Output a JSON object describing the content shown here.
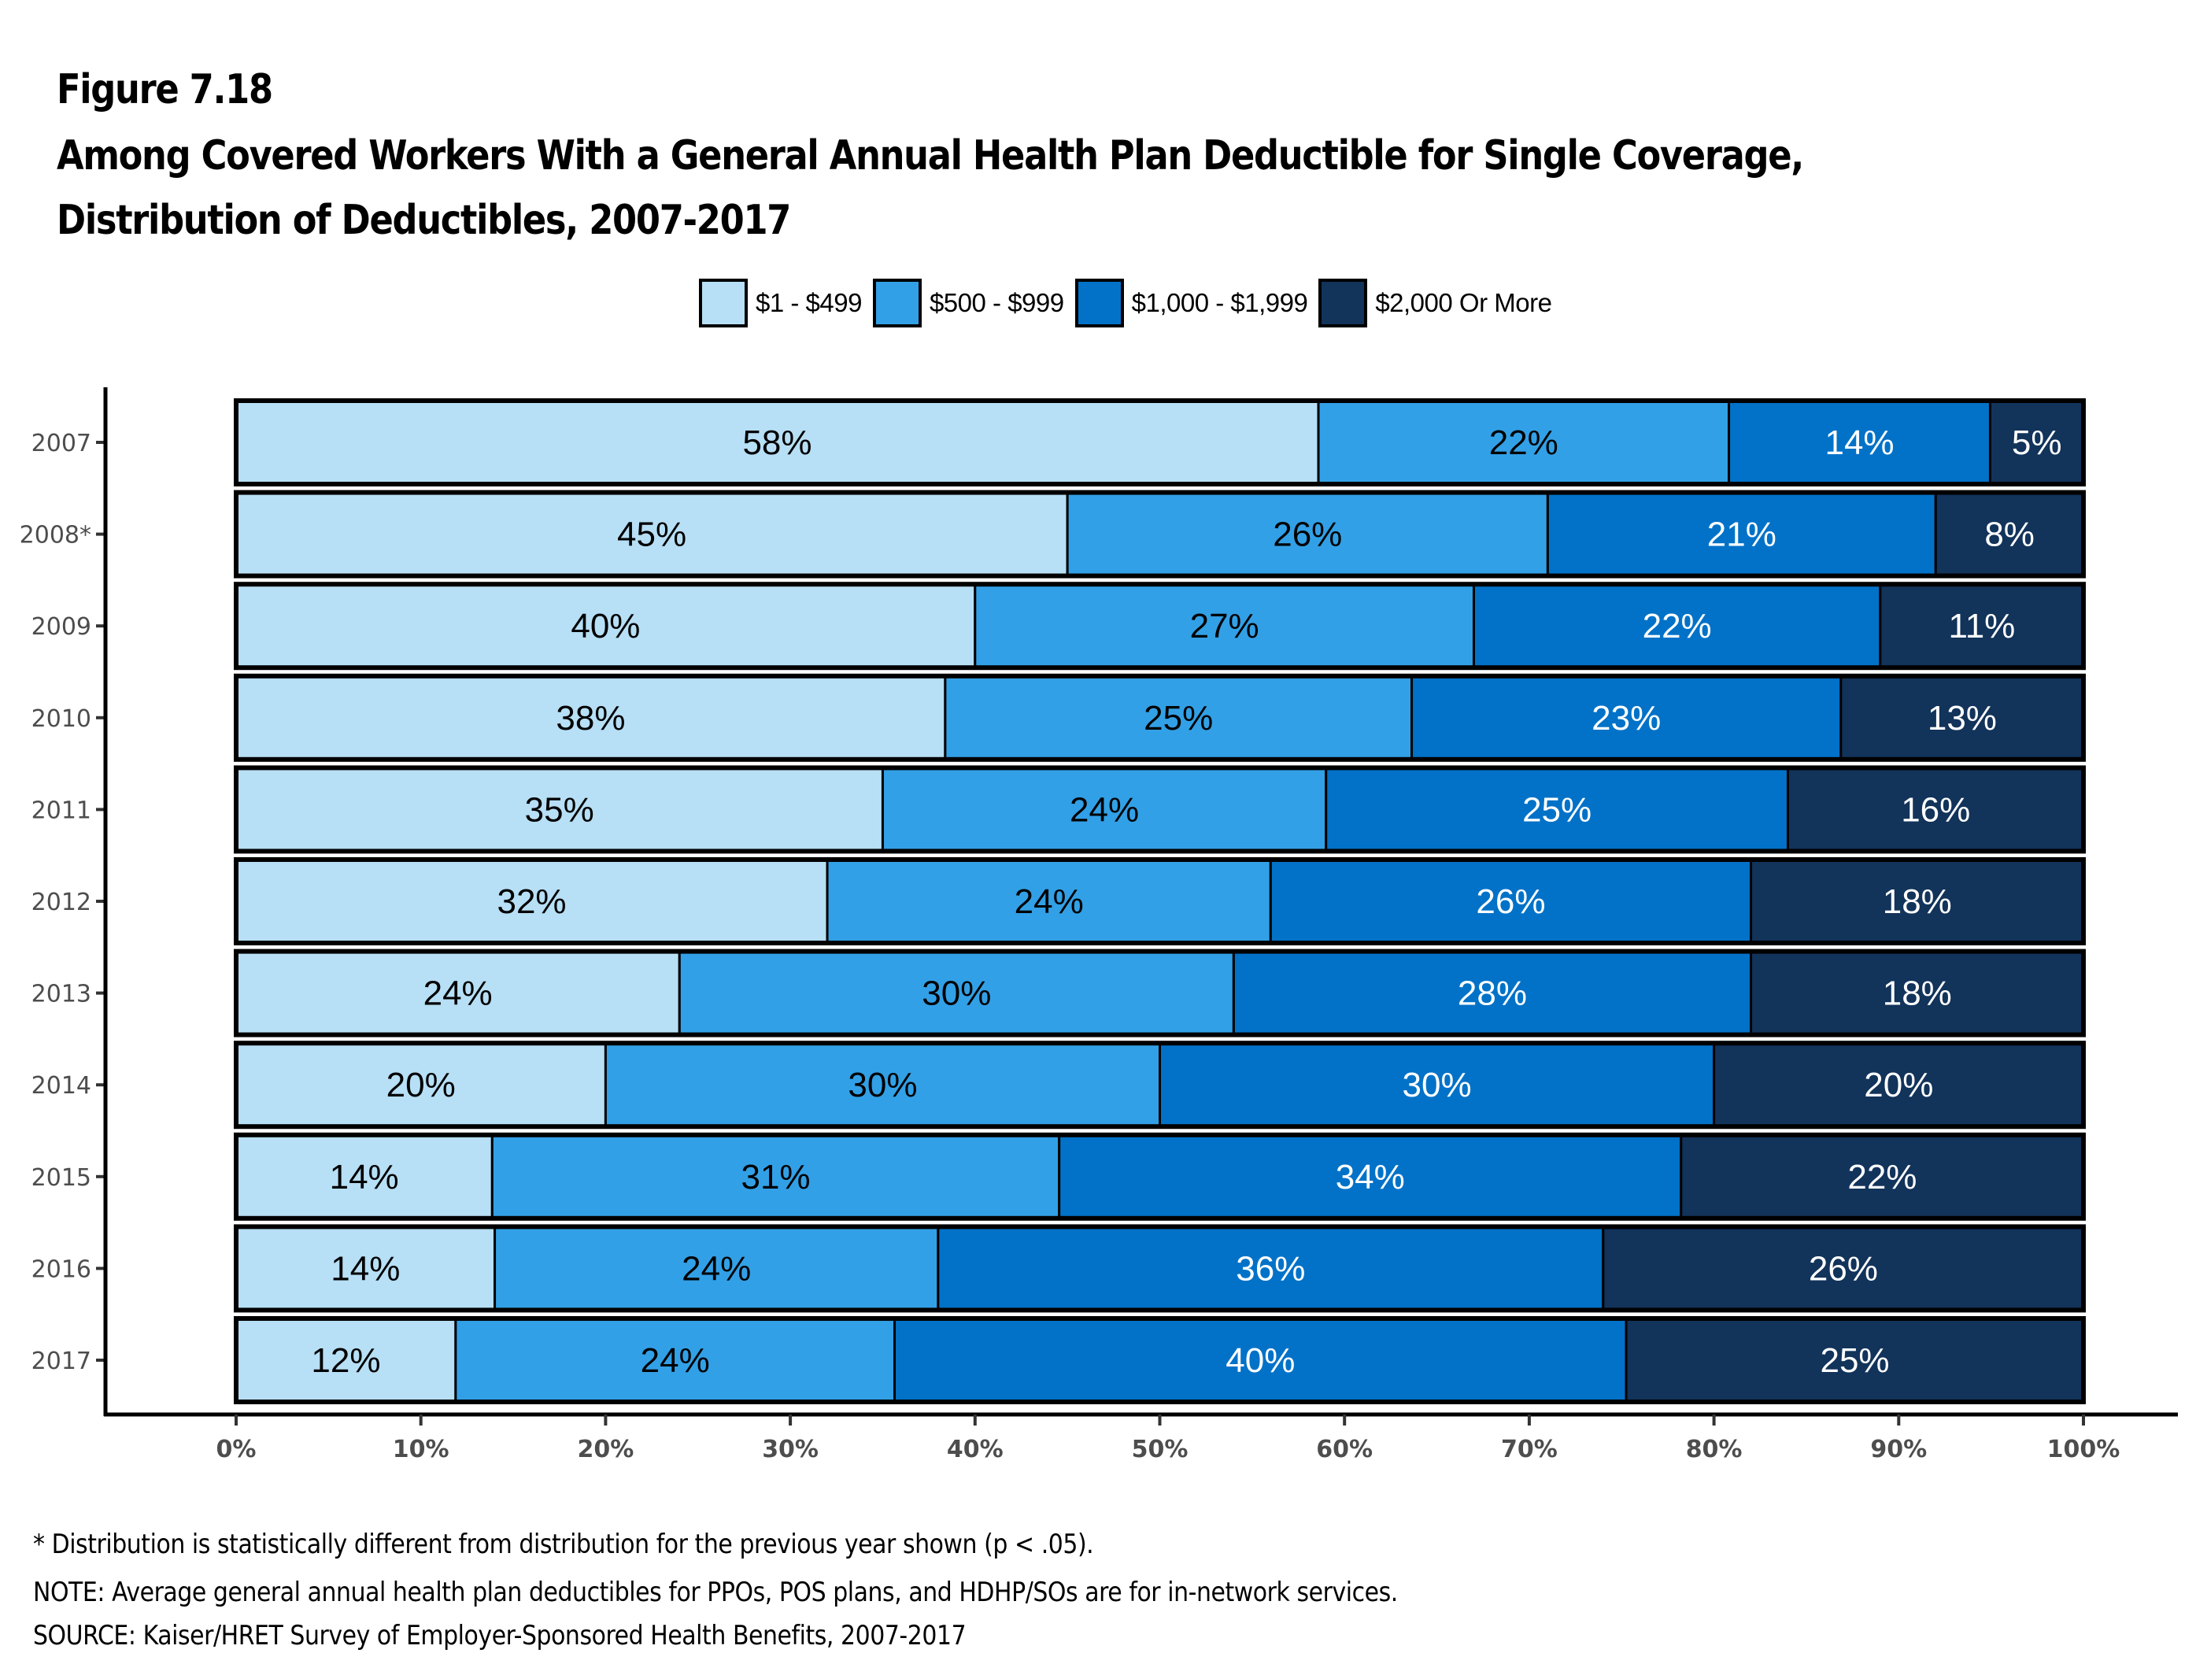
{
  "figure_number": "Figure 7.18",
  "title_line1": "Among Covered Workers With a General Annual Health Plan Deductible for Single Coverage,",
  "title_line2": "Distribution of Deductibles, 2007-2017",
  "legend": [
    {
      "label": "$1 - $499",
      "color": "#b7dff5"
    },
    {
      "label": "$500 - $999",
      "color": "#32a0e6"
    },
    {
      "label": "$1,000 - $1,999",
      "color": "#0272c8"
    },
    {
      "label": "$2,000 Or More",
      "color": "#12335a"
    }
  ],
  "footnotes": {
    "asterisk": "* Distribution is statistically different from distribution for the previous year shown (p < .05).",
    "note": "NOTE: Average general annual health plan deductibles for PPOs, POS plans, and HDHP/SOs are for in-network services.",
    "source": "SOURCE: Kaiser/HRET Survey of Employer-Sponsored Health Benefits, 2007-2017"
  },
  "chart_data": {
    "type": "bar",
    "orientation": "horizontal",
    "stacked": true,
    "title": "Among Covered Workers With a General Annual Health Plan Deductible for Single Coverage, Distribution of Deductibles, 2007-2017",
    "xlabel": "",
    "ylabel": "",
    "xlim": [
      0,
      100
    ],
    "x_ticks": [
      "0%",
      "10%",
      "20%",
      "30%",
      "40%",
      "50%",
      "60%",
      "70%",
      "80%",
      "90%",
      "100%"
    ],
    "categories": [
      "2007",
      "2008*",
      "2009",
      "2010",
      "2011",
      "2012",
      "2013",
      "2014",
      "2015",
      "2016",
      "2017"
    ],
    "legend_position": "top-center",
    "grid": false,
    "series": [
      {
        "name": "$1 - $499",
        "color": "#b7dff5",
        "label_color": "#000000",
        "values": [
          58,
          45,
          40,
          38,
          35,
          32,
          24,
          20,
          14,
          14,
          12
        ]
      },
      {
        "name": "$500 - $999",
        "color": "#32a0e6",
        "label_color": "#000000",
        "values": [
          22,
          26,
          27,
          25,
          24,
          24,
          30,
          30,
          31,
          24,
          24
        ]
      },
      {
        "name": "$1,000 - $1,999",
        "color": "#0272c8",
        "label_color": "#ffffff",
        "values": [
          14,
          21,
          22,
          23,
          25,
          26,
          28,
          30,
          34,
          36,
          40
        ]
      },
      {
        "name": "$2,000 Or More",
        "color": "#12335a",
        "label_color": "#ffffff",
        "values": [
          5,
          8,
          11,
          13,
          16,
          18,
          18,
          20,
          22,
          26,
          25
        ]
      }
    ]
  }
}
